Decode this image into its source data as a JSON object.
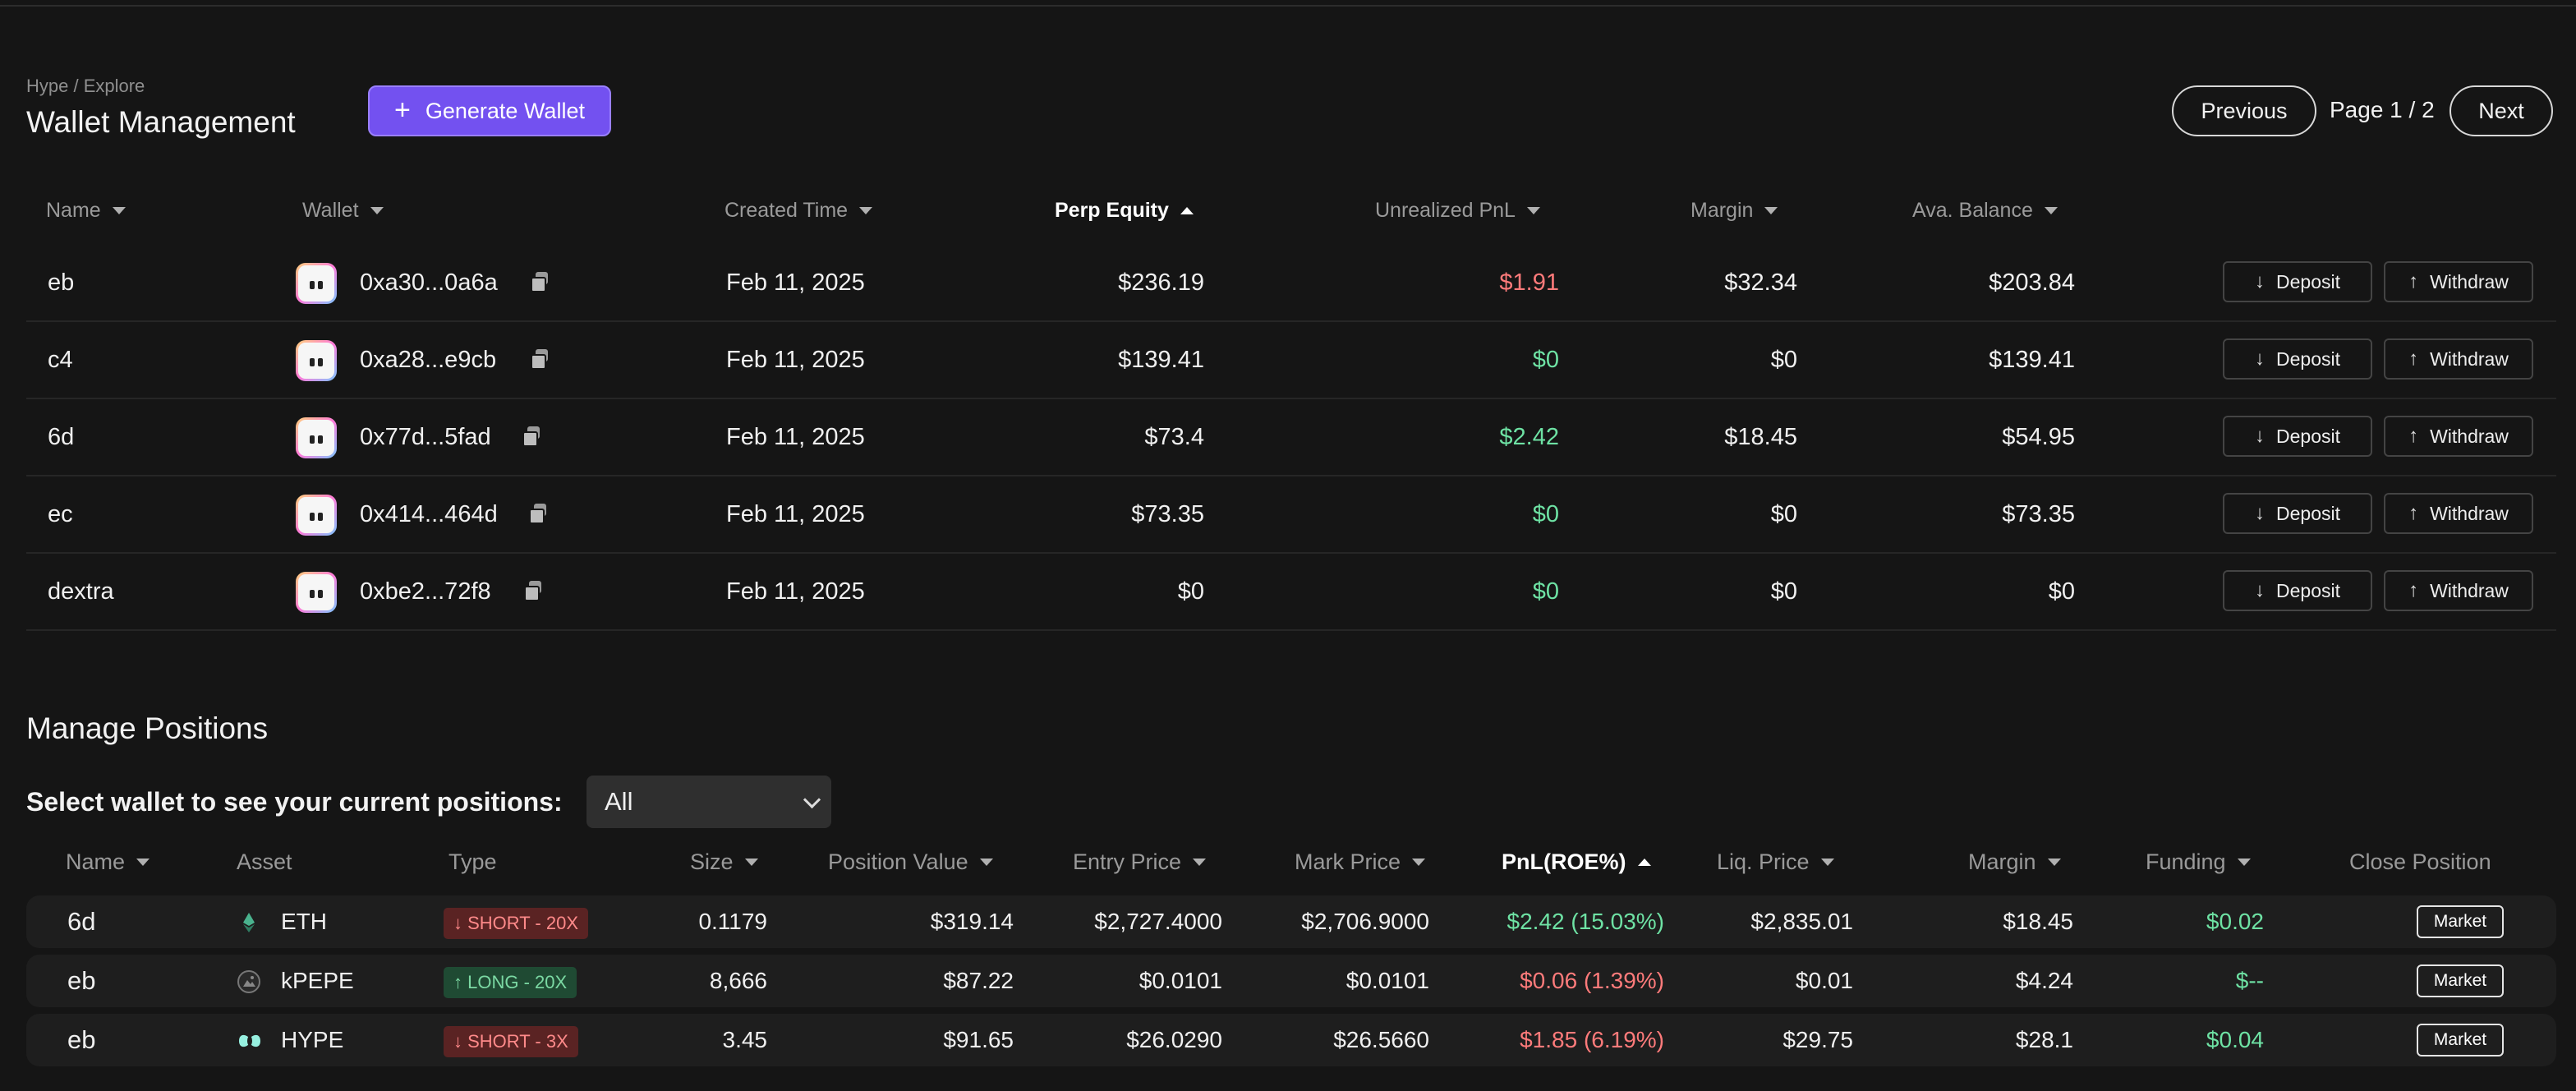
{
  "colors": {
    "accent": "#7351f0",
    "positive": "#6ee2a4",
    "negative": "#ff7b7b",
    "background": "#151515"
  },
  "header": {
    "breadcrumb": "Hype / Explore",
    "title": "Wallet Management",
    "generate_label": "Generate Wallet",
    "generate_icon": "plus-icon"
  },
  "pagination": {
    "previous": "Previous",
    "page": "Page 1 / 2",
    "next": "Next"
  },
  "wallet_table": {
    "columns": [
      "Name",
      "Wallet",
      "Created Time",
      "Perp Equity",
      "Unrealized PnL",
      "Margin",
      "Ava. Balance"
    ],
    "sorted_column": "Perp Equity",
    "deposit_label": "Deposit",
    "withdraw_label": "Withdraw",
    "rows": [
      {
        "name": "eb",
        "wallet": "0xa30...0a6a",
        "created": "Feb 11, 2025",
        "equity": "$236.19",
        "pnl": "$1.91",
        "pnl_sign": "negative",
        "margin": "$32.34",
        "balance": "$203.84"
      },
      {
        "name": "c4",
        "wallet": "0xa28...e9cb",
        "created": "Feb 11, 2025",
        "equity": "$139.41",
        "pnl": "$0",
        "pnl_sign": "positive",
        "margin": "$0",
        "balance": "$139.41"
      },
      {
        "name": "6d",
        "wallet": "0x77d...5fad",
        "created": "Feb 11, 2025",
        "equity": "$73.4",
        "pnl": "$2.42",
        "pnl_sign": "positive",
        "margin": "$18.45",
        "balance": "$54.95"
      },
      {
        "name": "ec",
        "wallet": "0x414...464d",
        "created": "Feb 11, 2025",
        "equity": "$73.35",
        "pnl": "$0",
        "pnl_sign": "positive",
        "margin": "$0",
        "balance": "$73.35"
      },
      {
        "name": "dextra",
        "wallet": "0xbe2...72f8",
        "created": "Feb 11, 2025",
        "equity": "$0",
        "pnl": "$0",
        "pnl_sign": "positive",
        "margin": "$0",
        "balance": "$0"
      }
    ]
  },
  "positions": {
    "title": "Manage Positions",
    "select_label": "Select wallet to see your current positions:",
    "select_value": "All",
    "columns": [
      "Name",
      "Asset",
      "Type",
      "Size",
      "Position Value",
      "Entry Price",
      "Mark Price",
      "PnL(ROE%)",
      "Liq. Price",
      "Margin",
      "Funding",
      "Close Position"
    ],
    "sorted_column": "PnL(ROE%)",
    "close_label": "Market",
    "rows": [
      {
        "name": "6d",
        "asset": "ETH",
        "asset_icon": "eth-icon",
        "type": "↓ SHORT - 20X",
        "side": "short",
        "size": "0.1179",
        "value": "$319.14",
        "entry": "$2,727.4000",
        "mark": "$2,706.9000",
        "pnl": "$2.42 (15.03%)",
        "pnl_sign": "positive",
        "liq": "$2,835.01",
        "margin": "$18.45",
        "funding": "$0.02"
      },
      {
        "name": "eb",
        "asset": "kPEPE",
        "asset_icon": "pepe-icon",
        "type": "↑ LONG - 20X",
        "side": "long",
        "size": "8,666",
        "value": "$87.22",
        "entry": "$0.0101",
        "mark": "$0.0101",
        "pnl": "$0.06 (1.39%)",
        "pnl_sign": "negative",
        "liq": "$0.01",
        "margin": "$4.24",
        "funding": "$--"
      },
      {
        "name": "eb",
        "asset": "HYPE",
        "asset_icon": "hype-icon",
        "type": "↓ SHORT - 3X",
        "side": "short",
        "size": "3.45",
        "value": "$91.65",
        "entry": "$26.0290",
        "mark": "$26.5660",
        "pnl": "$1.85 (6.19%)",
        "pnl_sign": "negative",
        "liq": "$29.75",
        "margin": "$28.1",
        "funding": "$0.04"
      }
    ]
  }
}
